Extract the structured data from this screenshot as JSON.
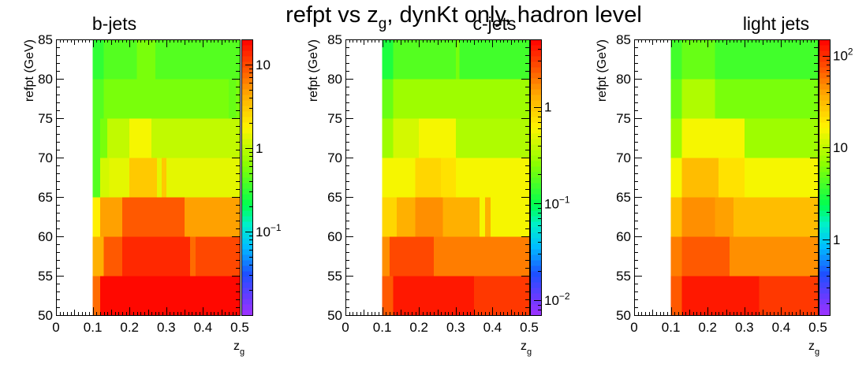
{
  "figure": {
    "title_parts": [
      "refpt vs z",
      "g",
      ", dynKt only, hadron level"
    ]
  },
  "chart_data": [
    {
      "type": "heatmap",
      "title": "b-jets",
      "xlabel": "z",
      "xlabel_sub": "g",
      "ylabel": "refpt (GeV)",
      "xlim": [
        0,
        0.5
      ],
      "ylim": [
        50,
        85
      ],
      "x_ticks": [
        "0",
        "0.1",
        "0.2",
        "0.3",
        "0.4",
        "0.5"
      ],
      "y_ticks": [
        "50",
        "55",
        "60",
        "65",
        "70",
        "75",
        "80",
        "85"
      ],
      "colorbar": {
        "scale": "log",
        "range": [
          0.01,
          20
        ],
        "labels": [
          {
            "value": 10,
            "base": "10",
            "exp": ""
          },
          {
            "value": 1,
            "base": "1",
            "exp": ""
          },
          {
            "value": 0.1,
            "base": "10",
            "exp": "−1"
          }
        ]
      },
      "bins": [
        {
          "y": [
            50,
            55
          ],
          "segments": [
            [
              0.1,
              0.12,
              8
            ],
            [
              0.12,
              0.5,
              18
            ]
          ]
        },
        {
          "y": [
            55,
            60
          ],
          "segments": [
            [
              0.1,
              0.13,
              4
            ],
            [
              0.13,
              0.18,
              9
            ],
            [
              0.18,
              0.365,
              14
            ],
            [
              0.365,
              0.38,
              8
            ],
            [
              0.38,
              0.5,
              10
            ]
          ]
        },
        {
          "y": [
            60,
            65
          ],
          "segments": [
            [
              0.1,
              0.12,
              2
            ],
            [
              0.12,
              0.18,
              5
            ],
            [
              0.18,
              0.35,
              9
            ],
            [
              0.35,
              0.5,
              5
            ]
          ]
        },
        {
          "y": [
            65,
            70
          ],
          "segments": [
            [
              0.1,
              0.12,
              0.4
            ],
            [
              0.12,
              0.145,
              1.2
            ],
            [
              0.145,
              0.2,
              1.5
            ],
            [
              0.2,
              0.275,
              3
            ],
            [
              0.275,
              0.288,
              1.4
            ],
            [
              0.288,
              0.3,
              3
            ],
            [
              0.3,
              0.33,
              1.5
            ],
            [
              0.33,
              0.5,
              1.5
            ]
          ]
        },
        {
          "y": [
            70,
            75
          ],
          "segments": [
            [
              0.1,
              0.12,
              0.4
            ],
            [
              0.12,
              0.14,
              0.6
            ],
            [
              0.14,
              0.2,
              1.0
            ],
            [
              0.2,
              0.26,
              1.7
            ],
            [
              0.26,
              0.5,
              1.0
            ]
          ]
        },
        {
          "y": [
            75,
            80
          ],
          "segments": [
            [
              0.1,
              0.13,
              0.4
            ],
            [
              0.13,
              0.47,
              0.6
            ],
            [
              0.47,
              0.49,
              0.45
            ],
            [
              0.49,
              0.5,
              0.6
            ]
          ]
        },
        {
          "y": [
            80,
            85
          ],
          "segments": [
            [
              0.1,
              0.13,
              0.3
            ],
            [
              0.13,
              0.22,
              0.4
            ],
            [
              0.22,
              0.27,
              0.55
            ],
            [
              0.27,
              0.5,
              0.4
            ]
          ]
        }
      ]
    },
    {
      "type": "heatmap",
      "title": "c-jets",
      "xlabel": "z",
      "xlabel_sub": "g",
      "ylabel": "refpt (GeV)",
      "xlim": [
        0,
        0.5
      ],
      "ylim": [
        50,
        85
      ],
      "x_ticks": [
        "0",
        "0.1",
        "0.2",
        "0.3",
        "0.4",
        "0.5"
      ],
      "y_ticks": [
        "50",
        "55",
        "60",
        "65",
        "70",
        "75",
        "80",
        "85"
      ],
      "colorbar": {
        "scale": "log",
        "range": [
          0.007,
          5
        ],
        "labels": [
          {
            "value": 1,
            "base": "1",
            "exp": ""
          },
          {
            "value": 0.1,
            "base": "10",
            "exp": "−1"
          },
          {
            "value": 0.01,
            "base": "10",
            "exp": "−2"
          }
        ]
      },
      "bins": [
        {
          "y": [
            50,
            55
          ],
          "segments": [
            [
              0.1,
              0.13,
              2.5
            ],
            [
              0.13,
              0.35,
              4.0
            ],
            [
              0.35,
              0.5,
              3.2
            ]
          ]
        },
        {
          "y": [
            55,
            60
          ],
          "segments": [
            [
              0.1,
              0.12,
              1.6
            ],
            [
              0.12,
              0.24,
              2.6
            ],
            [
              0.24,
              0.5,
              1.8
            ]
          ]
        },
        {
          "y": [
            60,
            65
          ],
          "segments": [
            [
              0.1,
              0.12,
              0.8
            ],
            [
              0.12,
              0.14,
              0.85
            ],
            [
              0.14,
              0.19,
              1.2
            ],
            [
              0.19,
              0.265,
              1.7
            ],
            [
              0.265,
              0.365,
              1.2
            ],
            [
              0.365,
              0.38,
              0.55
            ],
            [
              0.38,
              0.395,
              1.2
            ],
            [
              0.395,
              0.41,
              0.55
            ],
            [
              0.41,
              0.5,
              0.6
            ]
          ]
        },
        {
          "y": [
            65,
            70
          ],
          "segments": [
            [
              0.1,
              0.14,
              0.6
            ],
            [
              0.14,
              0.19,
              0.55
            ],
            [
              0.19,
              0.26,
              0.8
            ],
            [
              0.26,
              0.3,
              0.7
            ],
            [
              0.3,
              0.5,
              0.6
            ]
          ]
        },
        {
          "y": [
            70,
            75
          ],
          "segments": [
            [
              0.1,
              0.13,
              0.3
            ],
            [
              0.13,
              0.2,
              0.45
            ],
            [
              0.2,
              0.3,
              0.55
            ],
            [
              0.3,
              0.5,
              0.35
            ]
          ]
        },
        {
          "y": [
            75,
            80
          ],
          "segments": [
            [
              0.1,
              0.13,
              0.2
            ],
            [
              0.13,
              0.5,
              0.28
            ]
          ]
        },
        {
          "y": [
            80,
            85
          ],
          "segments": [
            [
              0.1,
              0.13,
              0.12
            ],
            [
              0.13,
              0.3,
              0.17
            ],
            [
              0.3,
              0.31,
              0.22
            ],
            [
              0.31,
              0.5,
              0.15
            ]
          ]
        }
      ]
    },
    {
      "type": "heatmap",
      "title": "light jets",
      "xlabel": "z",
      "xlabel_sub": "g",
      "ylabel": "refpt (GeV)",
      "xlim": [
        0,
        0.5
      ],
      "ylim": [
        50,
        85
      ],
      "x_ticks": [
        "0",
        "0.1",
        "0.2",
        "0.3",
        "0.4",
        "0.5"
      ],
      "y_ticks": [
        "50",
        "55",
        "60",
        "65",
        "70",
        "75",
        "80",
        "85"
      ],
      "colorbar": {
        "scale": "log",
        "range": [
          0.15,
          150
        ],
        "labels": [
          {
            "value": 100,
            "base": "10",
            "exp": "2"
          },
          {
            "value": 10,
            "base": "10",
            "exp": ""
          },
          {
            "value": 1,
            "base": "1",
            "exp": ""
          }
        ]
      },
      "bins": [
        {
          "y": [
            50,
            55
          ],
          "segments": [
            [
              0.1,
              0.13,
              70
            ],
            [
              0.13,
              0.34,
              130
            ],
            [
              0.34,
              0.5,
              90
            ]
          ]
        },
        {
          "y": [
            55,
            60
          ],
          "segments": [
            [
              0.1,
              0.13,
              50
            ],
            [
              0.13,
              0.26,
              75
            ],
            [
              0.26,
              0.5,
              45
            ]
          ]
        },
        {
          "y": [
            60,
            65
          ],
          "segments": [
            [
              0.1,
              0.13,
              30
            ],
            [
              0.13,
              0.22,
              45
            ],
            [
              0.22,
              0.27,
              42
            ],
            [
              0.27,
              0.5,
              30
            ]
          ]
        },
        {
          "y": [
            65,
            70
          ],
          "segments": [
            [
              0.1,
              0.13,
              15
            ],
            [
              0.13,
              0.23,
              30
            ],
            [
              0.23,
              0.3,
              20
            ],
            [
              0.3,
              0.5,
              15
            ]
          ]
        },
        {
          "y": [
            70,
            75
          ],
          "segments": [
            [
              0.1,
              0.13,
              8
            ],
            [
              0.13,
              0.3,
              15
            ],
            [
              0.3,
              0.5,
              8
            ]
          ]
        },
        {
          "y": [
            75,
            80
          ],
          "segments": [
            [
              0.1,
              0.13,
              5
            ],
            [
              0.13,
              0.22,
              9
            ],
            [
              0.22,
              0.5,
              6
            ]
          ]
        },
        {
          "y": [
            80,
            85
          ],
          "segments": [
            [
              0.1,
              0.13,
              4
            ],
            [
              0.13,
              0.22,
              5
            ],
            [
              0.22,
              0.5,
              4
            ]
          ]
        }
      ]
    }
  ]
}
